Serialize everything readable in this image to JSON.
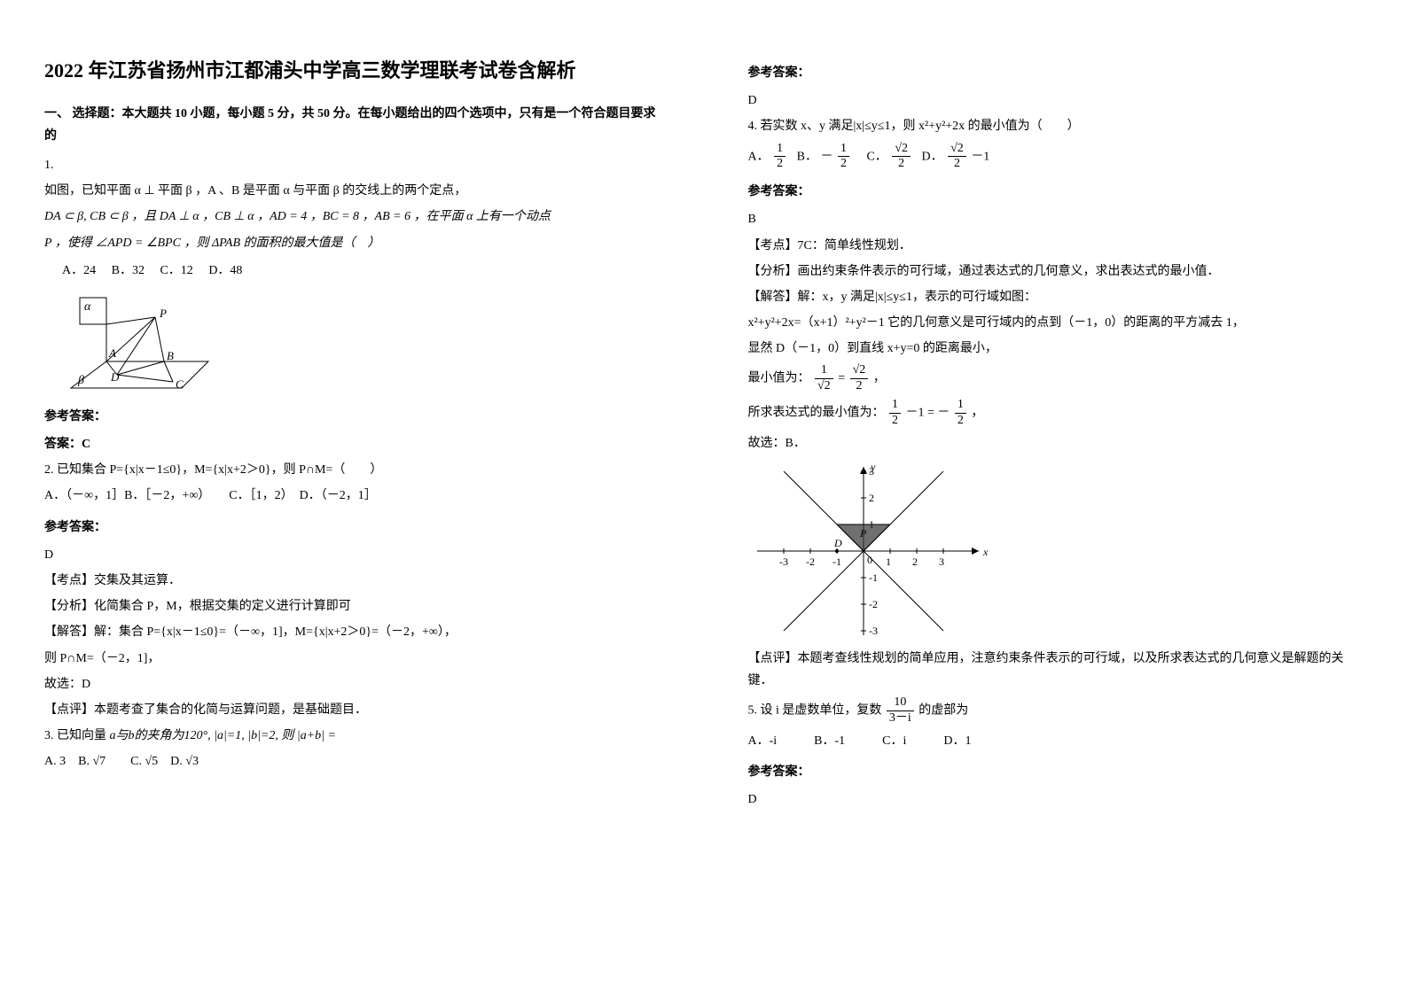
{
  "title": "2022 年江苏省扬州市江都浦头中学高三数学理联考试卷含解析",
  "section1_header": "一、 选择题：本大题共 10 小题，每小题 5 分，共 50 分。在每小题给出的四个选项中，只有是一个符合题目要求的",
  "q1": {
    "num": "1.",
    "line1": "如图，已知平面 α ⊥ 平面 β ，A 、B 是平面 α 与平面 β 的交线上的两个定点，",
    "line2": "DA ⊂ β, CB ⊂ β ，且 DA ⊥ α ，CB ⊥ α ，AD = 4 ，BC = 8 ，AB = 6 ，在平面 α 上有一个动点",
    "line3": "P ，使得 ∠APD = ∠BPC ，则 ΔPAB 的面积的最大值是（　）",
    "optA": "A．24",
    "optB": "B．32",
    "optC": "C．12",
    "optD": "D．48",
    "labels": {
      "alpha": "α",
      "beta": "β",
      "A": "A",
      "B": "B",
      "C": "C",
      "D": "D",
      "P": "P"
    },
    "diagram_stroke": "#000000"
  },
  "answer_label": "参考答案：",
  "q1_ans": "答案：C",
  "q2": {
    "num": "2. ",
    "text": "已知集合 P={x|x－1≤0}，M={x|x+2＞0}，则 P∩M=（　　）",
    "opts": "A．（－∞，1］B．［－2，+∞）　　C．［1，2）　D．（－2，1］",
    "ans_letter": "D",
    "kaodian": "【考点】交集及其运算．",
    "fenxi": "【分析】化简集合 P，M，根据交集的定义进行计算即可",
    "jieda1": "【解答】解：集合 P={x|x－1≤0}=（－∞，1]，M={x|x+2＞0}=（－2，+∞），",
    "jieda2": "则 P∩M=（－2，1]，",
    "jieda3": "故选：D",
    "dianping": "【点评】本题考查了集合的化简与运算问题，是基础题目．"
  },
  "q3": {
    "num": "3. ",
    "text_prefix": "已知向量",
    "text_mid": "a与b的夹角为120°, |a|=1, |b|=2, 则 |a+b| =",
    "opts": "A. 3　B. √7　　C. √5　D. √3",
    "ans_letter": "D"
  },
  "q4": {
    "num": "4. ",
    "text": "若实数 x、y 满足|x|≤y≤1，则 x²+y²+2x 的最小值为（　　）",
    "optA_label": "A．",
    "optB_label": "B．",
    "optC_label": "C．",
    "optD_label": "D．",
    "fracA_num": "1",
    "fracA_den": "2",
    "fracB_prefix": "－",
    "fracB_num": "1",
    "fracB_den": "2",
    "fracC_num": "√2",
    "fracC_den": "2",
    "fracD_num": "√2",
    "fracD_den": "2",
    "fracD_suffix": "－1",
    "ans_letter": "B",
    "kaodian": "【考点】7C：简单线性规划．",
    "fenxi": "【分析】画出约束条件表示的可行域，通过表达式的几何意义，求出表达式的最小值．",
    "jieda1": "【解答】解：x，y 满足|x|≤y≤1，表示的可行域如图：",
    "jieda2": "x²+y²+2x=（x+1）²+y²－1 它的几何意义是可行域内的点到（－1，0）的距离的平方减去 1，",
    "jieda3": "显然 D（－1，0）到直线 x+y=0 的距离最小，",
    "min_label": "最小值为：",
    "min_eq_num1": "1",
    "min_eq_den1": "√2",
    "min_eq_num2": "√2",
    "min_eq_den2": "2",
    "res_label": "所求表达式的最小值为：",
    "res_num1": "1",
    "res_den1": "2",
    "res_mid": "－1",
    "res_eq": " = ",
    "res_prefix2": "－",
    "res_num2": "1",
    "res_den2": "2",
    "guxuan": "故选：B．",
    "dianping": "【点评】本题考查线性规划的简单应用，注意约束条件表示的可行域，以及所求表达式的几何意义是解题的关键．",
    "chart": {
      "x_ticks": [
        "-3",
        "-2",
        "-1",
        "0",
        "1",
        "2",
        "3"
      ],
      "y_ticks_pos": [
        "1",
        "2",
        "3"
      ],
      "y_ticks_neg": [
        "-1",
        "-2",
        "-3"
      ],
      "x_axis_label": "x",
      "y_axis_label": "y",
      "D_label": "D",
      "P_label": "P",
      "axis_color": "#000000",
      "fill_color": "#333333",
      "grid_font": "12"
    }
  },
  "q5": {
    "num": "5. ",
    "text_prefix": "设 i 是虚数单位，复数",
    "frac_num": "10",
    "frac_den": "3－i",
    "text_suffix": "的虚部为",
    "opts": "A．-i　　　B．-1　　　C．i　　　D．1",
    "ans_letter": "D"
  }
}
